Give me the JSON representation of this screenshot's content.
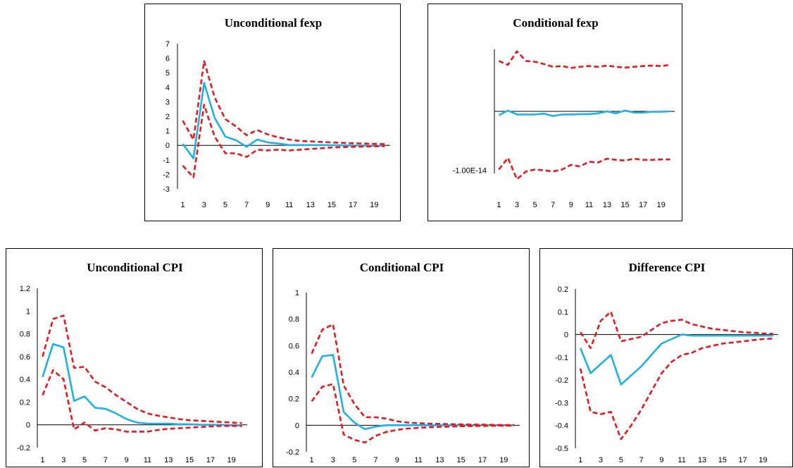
{
  "figure_heading": "",
  "colors": {
    "irf": "#1fb0e6",
    "bands": "#e8181c",
    "axis": "#000000"
  },
  "chart_data": [
    {
      "id": "p1",
      "type": "line",
      "title": "Unconditional fexp",
      "x": [
        1,
        2,
        3,
        4,
        5,
        6,
        7,
        8,
        9,
        10,
        11,
        12,
        13,
        14,
        15,
        16,
        17,
        18,
        19,
        20
      ],
      "x_tick_labels": [
        "1",
        "3",
        "5",
        "7",
        "9",
        "11",
        "13",
        "15",
        "17",
        "19"
      ],
      "ylim": [
        -3,
        7
      ],
      "y_ticks": [
        -3,
        -2,
        -1,
        0,
        1,
        2,
        3,
        4,
        5,
        6,
        7
      ],
      "y_tick_labels": [
        "-3",
        "-2",
        "-1",
        "0",
        "1",
        "2",
        "3",
        "4",
        "5",
        "6",
        "7"
      ],
      "series": [
        {
          "role": "irf",
          "values": [
            0.1,
            -0.9,
            4.3,
            1.9,
            0.6,
            0.35,
            -0.1,
            0.4,
            0.2,
            0.12,
            0.02,
            0.02,
            0.02,
            0.02,
            0.01,
            0.0,
            -0.01,
            -0.02,
            -0.03,
            -0.03
          ]
        },
        {
          "role": "upper",
          "values": [
            1.7,
            0.4,
            5.8,
            3.3,
            1.8,
            1.3,
            0.7,
            1.05,
            0.75,
            0.55,
            0.4,
            0.3,
            0.27,
            0.24,
            0.2,
            0.17,
            0.14,
            0.12,
            0.1,
            0.08
          ]
        },
        {
          "role": "lower",
          "values": [
            -1.4,
            -2.2,
            2.8,
            0.6,
            -0.55,
            -0.55,
            -0.8,
            -0.3,
            -0.35,
            -0.3,
            -0.35,
            -0.3,
            -0.25,
            -0.2,
            -0.15,
            -0.12,
            -0.1,
            -0.08,
            -0.07,
            -0.06
          ]
        }
      ]
    },
    {
      "id": "p2",
      "type": "line",
      "title": "Conditional fexp",
      "x": [
        1,
        2,
        3,
        4,
        5,
        6,
        7,
        8,
        9,
        10,
        11,
        12,
        13,
        14,
        15,
        16,
        17,
        18,
        19,
        20
      ],
      "x_tick_labels": [
        "1",
        "3",
        "5",
        "7",
        "9",
        "11",
        "13",
        "15",
        "17",
        "19"
      ],
      "ylim": [
        -1.6,
        1.6
      ],
      "y_ticks": [
        -1.52
      ],
      "y_tick_labels": [
        "-1.00E-14"
      ],
      "series": [
        {
          "role": "irf",
          "values": [
            -0.1,
            0.02,
            -0.08,
            -0.08,
            -0.08,
            -0.06,
            -0.12,
            -0.08,
            -0.08,
            -0.07,
            -0.07,
            -0.05,
            0.0,
            -0.05,
            0.02,
            -0.03,
            -0.03,
            -0.01,
            -0.01,
            0.0
          ]
        },
        {
          "role": "upper",
          "values": [
            1.3,
            1.2,
            1.55,
            1.3,
            1.28,
            1.22,
            1.15,
            1.17,
            1.12,
            1.15,
            1.17,
            1.15,
            1.18,
            1.15,
            1.13,
            1.15,
            1.17,
            1.18,
            1.17,
            1.2
          ]
        },
        {
          "role": "lower",
          "values": [
            -1.5,
            -1.2,
            -1.75,
            -1.55,
            -1.5,
            -1.52,
            -1.55,
            -1.5,
            -1.38,
            -1.42,
            -1.3,
            -1.32,
            -1.22,
            -1.25,
            -1.27,
            -1.22,
            -1.25,
            -1.25,
            -1.24,
            -1.24
          ]
        }
      ]
    },
    {
      "id": "p3",
      "type": "line",
      "title": "Unconditional CPI",
      "x": [
        1,
        2,
        3,
        4,
        5,
        6,
        7,
        8,
        9,
        10,
        11,
        12,
        13,
        14,
        15,
        16,
        17,
        18,
        19,
        20
      ],
      "x_tick_labels": [
        "1",
        "3",
        "5",
        "7",
        "9",
        "11",
        "13",
        "15",
        "17",
        "19"
      ],
      "ylim": [
        -0.2,
        1.2
      ],
      "y_ticks": [
        -0.2,
        0,
        0.2,
        0.4,
        0.6,
        0.8,
        1,
        1.2
      ],
      "y_tick_labels": [
        "-0.2",
        "0",
        "0.2",
        "0.4",
        "0.6",
        "0.8",
        "1",
        "1.2"
      ],
      "series": [
        {
          "role": "irf",
          "values": [
            0.42,
            0.71,
            0.68,
            0.21,
            0.25,
            0.15,
            0.14,
            0.1,
            0.05,
            0.02,
            0.01,
            0.01,
            0.01,
            0.005,
            0.005,
            0.0,
            0.0,
            0.0,
            -0.005,
            -0.005
          ]
        },
        {
          "role": "upper",
          "values": [
            0.6,
            0.93,
            0.96,
            0.5,
            0.51,
            0.38,
            0.33,
            0.26,
            0.2,
            0.14,
            0.1,
            0.08,
            0.065,
            0.05,
            0.04,
            0.035,
            0.03,
            0.025,
            0.02,
            0.015
          ]
        },
        {
          "role": "lower",
          "values": [
            0.26,
            0.48,
            0.4,
            -0.04,
            0.02,
            -0.05,
            -0.03,
            -0.04,
            -0.06,
            -0.06,
            -0.06,
            -0.045,
            -0.035,
            -0.03,
            -0.025,
            -0.02,
            -0.015,
            -0.01,
            -0.01,
            -0.01
          ]
        }
      ]
    },
    {
      "id": "p4",
      "type": "line",
      "title": "Conditional CPI",
      "x": [
        1,
        2,
        3,
        4,
        5,
        6,
        7,
        8,
        9,
        10,
        11,
        12,
        13,
        14,
        15,
        16,
        17,
        18,
        19,
        20
      ],
      "x_tick_labels": [
        "1",
        "3",
        "5",
        "7",
        "9",
        "11",
        "13",
        "15",
        "17",
        "19"
      ],
      "ylim": [
        -0.2,
        1
      ],
      "y_ticks": [
        -0.2,
        0,
        0.2,
        0.4,
        0.6,
        0.8,
        1
      ],
      "y_tick_labels": [
        "-0.2",
        "0",
        "0.2",
        "0.4",
        "0.6",
        "0.8",
        "1"
      ],
      "series": [
        {
          "role": "irf",
          "values": [
            0.36,
            0.52,
            0.53,
            0.1,
            0.02,
            -0.03,
            -0.01,
            0.0,
            0.0,
            0.0,
            0.0,
            0.0,
            0.0,
            0.0,
            0.0,
            0.0,
            0.0,
            0.0,
            0.0,
            0.0
          ]
        },
        {
          "role": "upper",
          "values": [
            0.54,
            0.72,
            0.76,
            0.3,
            0.16,
            0.06,
            0.06,
            0.05,
            0.03,
            0.02,
            0.015,
            0.012,
            0.01,
            0.008,
            0.006,
            0.005,
            0.004,
            0.003,
            0.002,
            0.002
          ]
        },
        {
          "role": "lower",
          "values": [
            0.18,
            0.29,
            0.31,
            -0.07,
            -0.11,
            -0.13,
            -0.08,
            -0.05,
            -0.035,
            -0.025,
            -0.02,
            -0.015,
            -0.012,
            -0.01,
            -0.008,
            -0.006,
            -0.005,
            -0.004,
            -0.003,
            -0.003
          ]
        }
      ]
    },
    {
      "id": "p5",
      "type": "line",
      "title": "Difference CPI",
      "x": [
        1,
        2,
        3,
        4,
        5,
        6,
        7,
        8,
        9,
        10,
        11,
        12,
        13,
        14,
        15,
        16,
        17,
        18,
        19,
        20
      ],
      "x_tick_labels": [
        "1",
        "3",
        "5",
        "7",
        "9",
        "11",
        "13",
        "15",
        "17",
        "19"
      ],
      "ylim": [
        -0.5,
        0.2
      ],
      "y_ticks": [
        -0.5,
        -0.4,
        -0.3,
        -0.2,
        -0.1,
        0,
        0.1,
        0.2
      ],
      "y_tick_labels": [
        "-0.5",
        "-0.4",
        "-0.3",
        "-0.2",
        "-0.1",
        "0",
        "0.1",
        "0.2"
      ],
      "series": [
        {
          "role": "irf",
          "values": [
            -0.06,
            -0.17,
            -0.13,
            -0.09,
            -0.22,
            -0.18,
            -0.14,
            -0.09,
            -0.04,
            -0.02,
            0.0,
            -0.005,
            -0.005,
            -0.005,
            -0.005,
            -0.005,
            -0.005,
            -0.005,
            -0.005,
            -0.005
          ]
        },
        {
          "role": "upper",
          "values": [
            0.01,
            -0.06,
            0.06,
            0.1,
            -0.03,
            -0.02,
            -0.01,
            0.02,
            0.05,
            0.06,
            0.065,
            0.045,
            0.035,
            0.025,
            0.02,
            0.015,
            0.01,
            0.008,
            0.005,
            0.003
          ]
        },
        {
          "role": "lower",
          "values": [
            -0.15,
            -0.34,
            -0.35,
            -0.34,
            -0.46,
            -0.4,
            -0.33,
            -0.25,
            -0.17,
            -0.12,
            -0.09,
            -0.08,
            -0.06,
            -0.05,
            -0.04,
            -0.035,
            -0.03,
            -0.025,
            -0.02,
            -0.018
          ]
        }
      ]
    }
  ]
}
